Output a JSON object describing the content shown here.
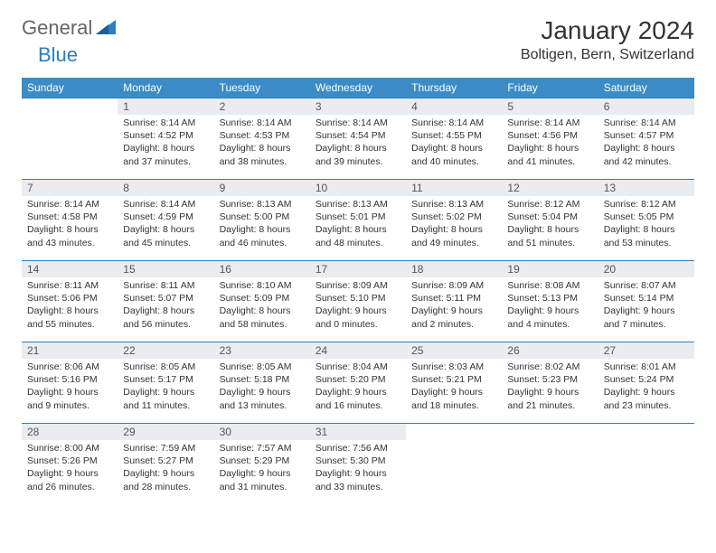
{
  "logo": {
    "general": "General",
    "blue": "Blue"
  },
  "title": "January 2024",
  "location": "Boltigen, Bern, Switzerland",
  "colors": {
    "header_bg": "#3b8cc6",
    "header_text": "#ffffff",
    "border": "#2a7fbf",
    "daynum_bg": "#e9edf0",
    "text": "#333333",
    "logo_blue": "#2a7fbf"
  },
  "weekdays": [
    "Sunday",
    "Monday",
    "Tuesday",
    "Wednesday",
    "Thursday",
    "Friday",
    "Saturday"
  ],
  "first_weekday_offset": 1,
  "days": [
    {
      "n": 1,
      "sunrise": "8:14 AM",
      "sunset": "4:52 PM",
      "dl_h": 8,
      "dl_m": 37
    },
    {
      "n": 2,
      "sunrise": "8:14 AM",
      "sunset": "4:53 PM",
      "dl_h": 8,
      "dl_m": 38
    },
    {
      "n": 3,
      "sunrise": "8:14 AM",
      "sunset": "4:54 PM",
      "dl_h": 8,
      "dl_m": 39
    },
    {
      "n": 4,
      "sunrise": "8:14 AM",
      "sunset": "4:55 PM",
      "dl_h": 8,
      "dl_m": 40
    },
    {
      "n": 5,
      "sunrise": "8:14 AM",
      "sunset": "4:56 PM",
      "dl_h": 8,
      "dl_m": 41
    },
    {
      "n": 6,
      "sunrise": "8:14 AM",
      "sunset": "4:57 PM",
      "dl_h": 8,
      "dl_m": 42
    },
    {
      "n": 7,
      "sunrise": "8:14 AM",
      "sunset": "4:58 PM",
      "dl_h": 8,
      "dl_m": 43
    },
    {
      "n": 8,
      "sunrise": "8:14 AM",
      "sunset": "4:59 PM",
      "dl_h": 8,
      "dl_m": 45
    },
    {
      "n": 9,
      "sunrise": "8:13 AM",
      "sunset": "5:00 PM",
      "dl_h": 8,
      "dl_m": 46
    },
    {
      "n": 10,
      "sunrise": "8:13 AM",
      "sunset": "5:01 PM",
      "dl_h": 8,
      "dl_m": 48
    },
    {
      "n": 11,
      "sunrise": "8:13 AM",
      "sunset": "5:02 PM",
      "dl_h": 8,
      "dl_m": 49
    },
    {
      "n": 12,
      "sunrise": "8:12 AM",
      "sunset": "5:04 PM",
      "dl_h": 8,
      "dl_m": 51
    },
    {
      "n": 13,
      "sunrise": "8:12 AM",
      "sunset": "5:05 PM",
      "dl_h": 8,
      "dl_m": 53
    },
    {
      "n": 14,
      "sunrise": "8:11 AM",
      "sunset": "5:06 PM",
      "dl_h": 8,
      "dl_m": 55
    },
    {
      "n": 15,
      "sunrise": "8:11 AM",
      "sunset": "5:07 PM",
      "dl_h": 8,
      "dl_m": 56
    },
    {
      "n": 16,
      "sunrise": "8:10 AM",
      "sunset": "5:09 PM",
      "dl_h": 8,
      "dl_m": 58
    },
    {
      "n": 17,
      "sunrise": "8:09 AM",
      "sunset": "5:10 PM",
      "dl_h": 9,
      "dl_m": 0
    },
    {
      "n": 18,
      "sunrise": "8:09 AM",
      "sunset": "5:11 PM",
      "dl_h": 9,
      "dl_m": 2
    },
    {
      "n": 19,
      "sunrise": "8:08 AM",
      "sunset": "5:13 PM",
      "dl_h": 9,
      "dl_m": 4
    },
    {
      "n": 20,
      "sunrise": "8:07 AM",
      "sunset": "5:14 PM",
      "dl_h": 9,
      "dl_m": 7
    },
    {
      "n": 21,
      "sunrise": "8:06 AM",
      "sunset": "5:16 PM",
      "dl_h": 9,
      "dl_m": 9
    },
    {
      "n": 22,
      "sunrise": "8:05 AM",
      "sunset": "5:17 PM",
      "dl_h": 9,
      "dl_m": 11
    },
    {
      "n": 23,
      "sunrise": "8:05 AM",
      "sunset": "5:18 PM",
      "dl_h": 9,
      "dl_m": 13
    },
    {
      "n": 24,
      "sunrise": "8:04 AM",
      "sunset": "5:20 PM",
      "dl_h": 9,
      "dl_m": 16
    },
    {
      "n": 25,
      "sunrise": "8:03 AM",
      "sunset": "5:21 PM",
      "dl_h": 9,
      "dl_m": 18
    },
    {
      "n": 26,
      "sunrise": "8:02 AM",
      "sunset": "5:23 PM",
      "dl_h": 9,
      "dl_m": 21
    },
    {
      "n": 27,
      "sunrise": "8:01 AM",
      "sunset": "5:24 PM",
      "dl_h": 9,
      "dl_m": 23
    },
    {
      "n": 28,
      "sunrise": "8:00 AM",
      "sunset": "5:26 PM",
      "dl_h": 9,
      "dl_m": 26
    },
    {
      "n": 29,
      "sunrise": "7:59 AM",
      "sunset": "5:27 PM",
      "dl_h": 9,
      "dl_m": 28
    },
    {
      "n": 30,
      "sunrise": "7:57 AM",
      "sunset": "5:29 PM",
      "dl_h": 9,
      "dl_m": 31
    },
    {
      "n": 31,
      "sunrise": "7:56 AM",
      "sunset": "5:30 PM",
      "dl_h": 9,
      "dl_m": 33
    }
  ]
}
